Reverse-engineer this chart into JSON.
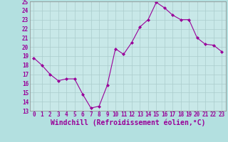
{
  "x": [
    0,
    1,
    2,
    3,
    4,
    5,
    6,
    7,
    8,
    9,
    10,
    11,
    12,
    13,
    14,
    15,
    16,
    17,
    18,
    19,
    20,
    21,
    22,
    23
  ],
  "y": [
    18.8,
    18.0,
    17.0,
    16.3,
    16.5,
    16.5,
    14.8,
    13.3,
    13.5,
    15.8,
    19.8,
    19.2,
    20.5,
    22.2,
    23.0,
    24.9,
    24.3,
    23.5,
    23.0,
    23.0,
    21.0,
    20.3,
    20.2,
    19.5
  ],
  "line_color": "#990099",
  "marker": "D",
  "marker_size": 2.0,
  "bg_color": "#b3e0e0",
  "grid_color": "#aacccc",
  "xlabel": "Windchill (Refroidissement éolien,°C)",
  "xlabel_color": "#990099",
  "ylim": [
    13,
    25
  ],
  "xlim": [
    -0.5,
    23.5
  ],
  "yticks": [
    13,
    14,
    15,
    16,
    17,
    18,
    19,
    20,
    21,
    22,
    23,
    24,
    25
  ],
  "xticks": [
    0,
    1,
    2,
    3,
    4,
    5,
    6,
    7,
    8,
    9,
    10,
    11,
    12,
    13,
    14,
    15,
    16,
    17,
    18,
    19,
    20,
    21,
    22,
    23
  ],
  "tick_label_size": 5.5,
  "xlabel_size": 7.0,
  "plot_bg_color": "#c8e8e8"
}
